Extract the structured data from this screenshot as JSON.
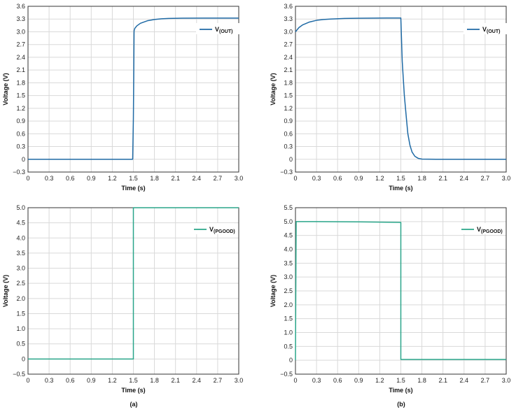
{
  "captions": {
    "a": "(a)",
    "b": "(b)"
  },
  "chart_data": [
    {
      "type": "line",
      "panel": "top-left",
      "xlabel": "Time (s)",
      "ylabel": "Voltage (V)",
      "xlim": [
        0,
        3.0
      ],
      "ylim": [
        -0.3,
        3.6
      ],
      "xticks": [
        "0",
        "0.3",
        "0.6",
        "0.9",
        "1.2",
        "1.5",
        "1.8",
        "2.1",
        "2.4",
        "2.7",
        "3.0"
      ],
      "yticks": [
        "−0.3",
        "0",
        "0.3",
        "0.6",
        "0.9",
        "1.2",
        "1.5",
        "1.8",
        "2.1",
        "2.4",
        "2.7",
        "3.0",
        "3.3",
        "3.6"
      ],
      "grid": true,
      "legend_position": "top-right",
      "series": [
        {
          "name_main": "V",
          "name_sub": "(OUT)",
          "color": "#1f6aa5",
          "x": [
            0,
            1.49,
            1.5,
            1.505,
            1.51,
            1.52,
            1.55,
            1.6,
            1.7,
            1.8,
            1.9,
            2.0,
            2.2,
            2.5,
            3.0
          ],
          "y": [
            0,
            0,
            0.95,
            1.9,
            3.02,
            3.08,
            3.14,
            3.2,
            3.26,
            3.29,
            3.305,
            3.315,
            3.32,
            3.322,
            3.322
          ]
        }
      ]
    },
    {
      "type": "line",
      "panel": "top-right",
      "xlabel": "Time (s)",
      "ylabel": "Voltage (V)",
      "xlim": [
        0,
        3.0
      ],
      "ylim": [
        -0.3,
        3.6
      ],
      "xticks": [
        "0",
        "0.3",
        "0.6",
        "0.9",
        "1.2",
        "1.5",
        "1.8",
        "2.1",
        "2.4",
        "2.7",
        "3.0"
      ],
      "yticks": [
        "−0.3",
        "0",
        "0.3",
        "0.6",
        "0.9",
        "1.2",
        "1.5",
        "1.8",
        "2.1",
        "2.4",
        "2.7",
        "3.0",
        "3.3",
        "3.6"
      ],
      "grid": true,
      "legend_position": "top-right",
      "series": [
        {
          "name_main": "V",
          "name_sub": "(OUT)",
          "color": "#1f6aa5",
          "x": [
            0,
            0.05,
            0.1,
            0.2,
            0.3,
            0.4,
            0.5,
            0.7,
            1.0,
            1.3,
            1.5,
            1.52,
            1.55,
            1.58,
            1.6,
            1.63,
            1.66,
            1.7,
            1.75,
            1.8,
            2.0,
            2.5,
            3.0
          ],
          "y": [
            3.0,
            3.1,
            3.16,
            3.23,
            3.27,
            3.29,
            3.3,
            3.315,
            3.32,
            3.325,
            3.325,
            2.3,
            1.5,
            0.95,
            0.6,
            0.33,
            0.17,
            0.07,
            0.02,
            0.005,
            0,
            0,
            0
          ]
        }
      ]
    },
    {
      "type": "line",
      "panel": "bottom-left",
      "xlabel": "Time (s)",
      "ylabel": "Voltage (V)",
      "xlim": [
        0,
        3.0
      ],
      "ylim": [
        -0.5,
        5.0
      ],
      "xticks": [
        "0",
        "0.3",
        "0.6",
        "0.9",
        "1.2",
        "1.5",
        "1.8",
        "2.1",
        "2.4",
        "2.7",
        "3.0"
      ],
      "yticks": [
        "−0.5",
        "0",
        "0.5",
        "1.0",
        "1.5",
        "2.0",
        "2.5",
        "3.0",
        "3.5",
        "4.0",
        "4.5",
        "5.0"
      ],
      "grid": true,
      "legend_position": "top-right",
      "series": [
        {
          "name_main": "V",
          "name_sub": "(PGOOD)",
          "color": "#2aa68a",
          "x": [
            0,
            1.5,
            1.5,
            3.0
          ],
          "y": [
            0,
            0,
            5.0,
            5.0
          ]
        }
      ]
    },
    {
      "type": "line",
      "panel": "bottom-right",
      "xlabel": "Time (s)",
      "ylabel": "Voltage (V)",
      "xlim": [
        0,
        3.0
      ],
      "ylim": [
        -0.5,
        5.5
      ],
      "xticks": [
        "0",
        "0.3",
        "0.6",
        "0.9",
        "1.2",
        "1.5",
        "1.8",
        "2.1",
        "2.4",
        "2.7",
        "3.0"
      ],
      "yticks": [
        "−0.5",
        "0",
        "0.5",
        "1.0",
        "1.5",
        "2.0",
        "2.5",
        "3.0",
        "3.5",
        "4.0",
        "4.5",
        "5.0",
        "5.5"
      ],
      "grid": true,
      "legend_position": "top-right",
      "series": [
        {
          "name_main": "V",
          "name_sub": "(PGOOD)",
          "color": "#2aa68a",
          "x": [
            0,
            0.01,
            0.3,
            0.9,
            1.5,
            1.5,
            3.0
          ],
          "y": [
            0,
            5.0,
            5.0,
            4.99,
            4.97,
            0.03,
            0.03
          ]
        }
      ]
    }
  ]
}
